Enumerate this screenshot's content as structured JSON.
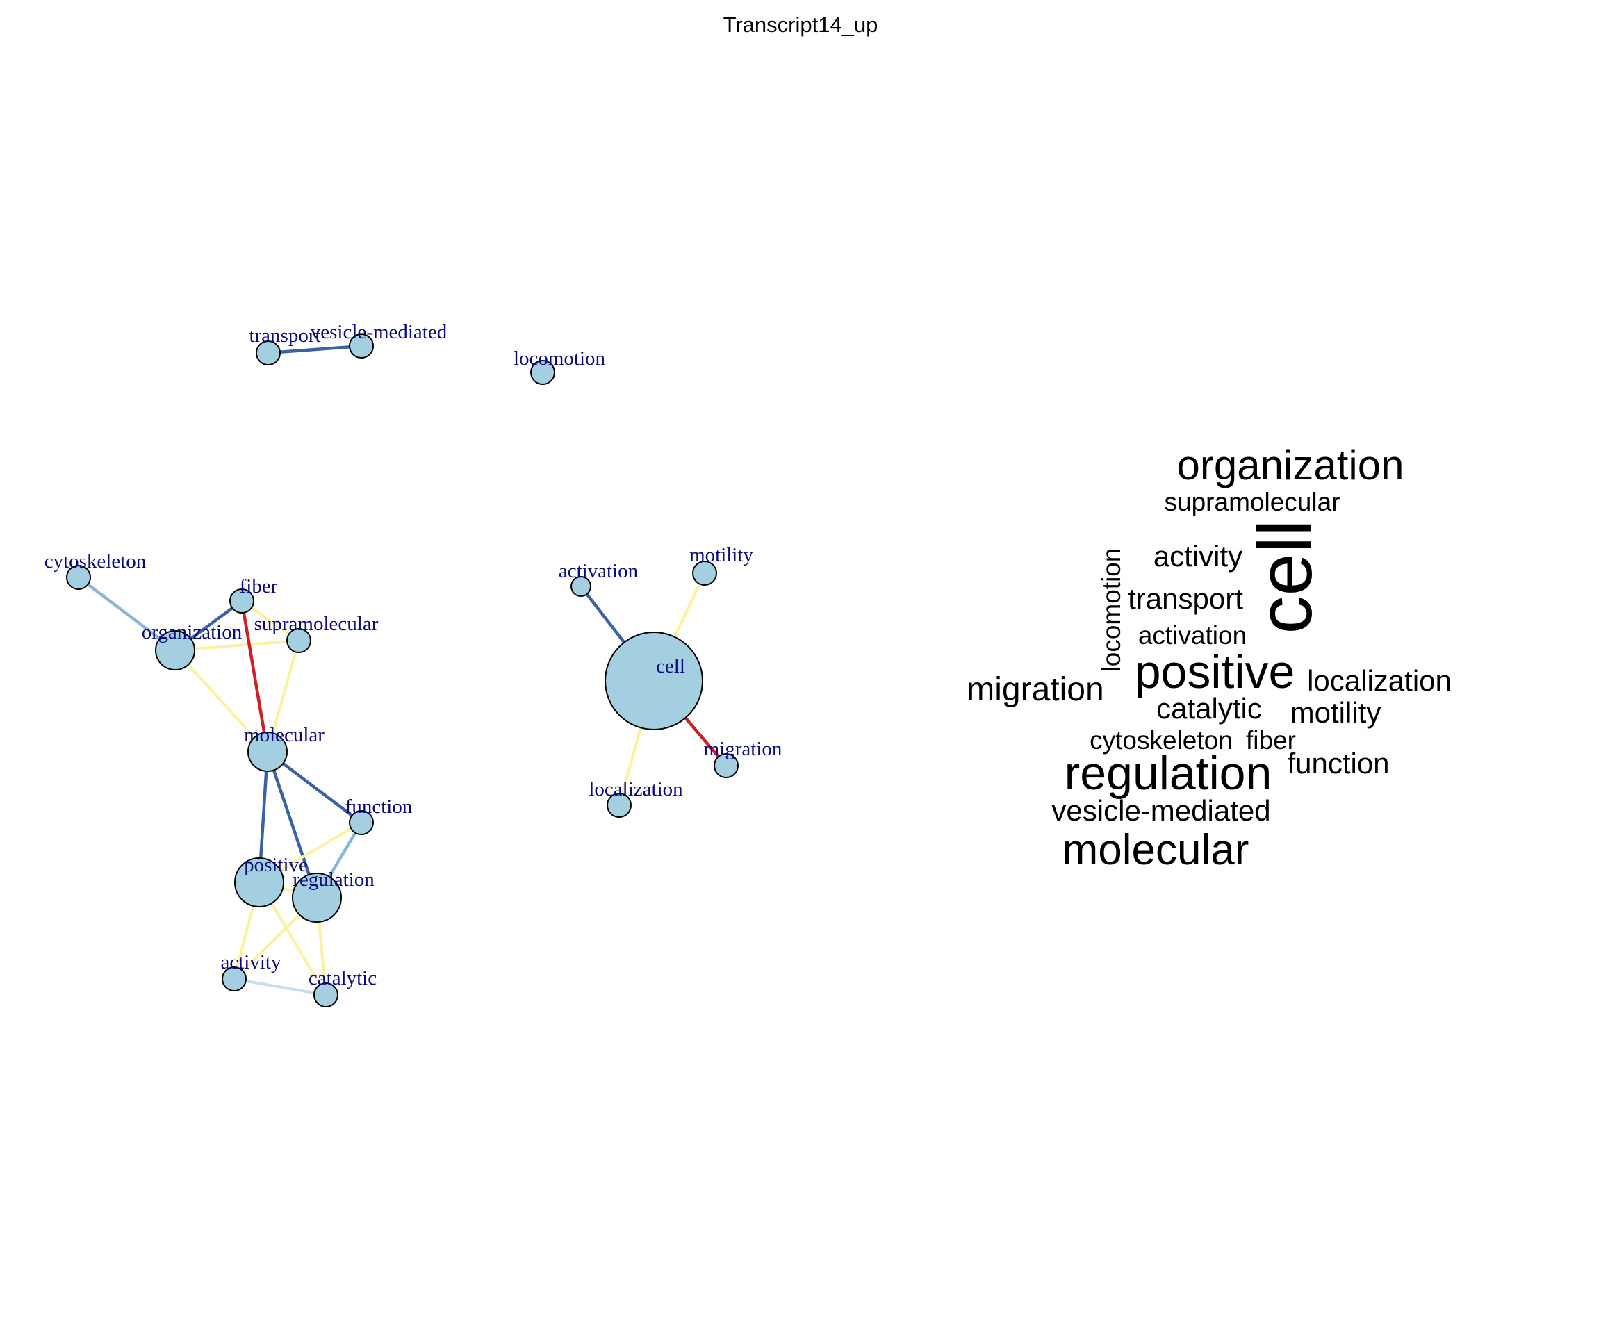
{
  "title": "Transcript14_up",
  "colors": {
    "node_fill": "#a3cfe0",
    "node_stroke": "#000000",
    "label": "#0a0a7a",
    "edge_strong": "#3b62a5",
    "edge_medium": "#8ab7d6",
    "edge_light": "#c4e0ea",
    "edge_weak": "#fbf2a0",
    "edge_red": "#cc1f26",
    "cloud_text": "#000000"
  },
  "network": {
    "nodes": [
      {
        "id": "transport",
        "label": "transport",
        "size": "small"
      },
      {
        "id": "vesicle-mediated",
        "label": "vesicle-mediated",
        "size": "small"
      },
      {
        "id": "locomotion",
        "label": "locomotion",
        "size": "small"
      },
      {
        "id": "cytoskeleton",
        "label": "cytoskeleton",
        "size": "small"
      },
      {
        "id": "fiber",
        "label": "fiber",
        "size": "small"
      },
      {
        "id": "organization",
        "label": "organization",
        "size": "medium"
      },
      {
        "id": "supramolecular",
        "label": "supramolecular",
        "size": "small"
      },
      {
        "id": "molecular",
        "label": "molecular",
        "size": "medium"
      },
      {
        "id": "function",
        "label": "function",
        "size": "small"
      },
      {
        "id": "positive",
        "label": "positive",
        "size": "large"
      },
      {
        "id": "regulation",
        "label": "regulation",
        "size": "large"
      },
      {
        "id": "activity",
        "label": "activity",
        "size": "small"
      },
      {
        "id": "catalytic",
        "label": "catalytic",
        "size": "small"
      },
      {
        "id": "activation",
        "label": "activation",
        "size": "xsmall"
      },
      {
        "id": "motility",
        "label": "motility",
        "size": "small"
      },
      {
        "id": "cell",
        "label": "cell",
        "size": "huge"
      },
      {
        "id": "migration",
        "label": "migration",
        "size": "small"
      },
      {
        "id": "localization",
        "label": "localization",
        "size": "small"
      }
    ],
    "edges": [
      {
        "source": "transport",
        "target": "vesicle-mediated",
        "strength": "strong"
      },
      {
        "source": "cytoskeleton",
        "target": "organization",
        "strength": "medium"
      },
      {
        "source": "organization",
        "target": "fiber",
        "strength": "strong"
      },
      {
        "source": "organization",
        "target": "supramolecular",
        "strength": "weak"
      },
      {
        "source": "fiber",
        "target": "supramolecular",
        "strength": "weak"
      },
      {
        "source": "fiber",
        "target": "molecular",
        "strength": "red"
      },
      {
        "source": "organization",
        "target": "molecular",
        "strength": "weak"
      },
      {
        "source": "supramolecular",
        "target": "molecular",
        "strength": "weak"
      },
      {
        "source": "molecular",
        "target": "positive",
        "strength": "strong"
      },
      {
        "source": "molecular",
        "target": "regulation",
        "strength": "strong"
      },
      {
        "source": "molecular",
        "target": "function",
        "strength": "strong"
      },
      {
        "source": "function",
        "target": "regulation",
        "strength": "medium"
      },
      {
        "source": "function",
        "target": "positive",
        "strength": "weak"
      },
      {
        "source": "positive",
        "target": "regulation",
        "strength": "weak"
      },
      {
        "source": "positive",
        "target": "activity",
        "strength": "weak"
      },
      {
        "source": "positive",
        "target": "catalytic",
        "strength": "weak"
      },
      {
        "source": "regulation",
        "target": "activity",
        "strength": "weak"
      },
      {
        "source": "regulation",
        "target": "catalytic",
        "strength": "weak"
      },
      {
        "source": "activity",
        "target": "catalytic",
        "strength": "light"
      },
      {
        "source": "cell",
        "target": "activation",
        "strength": "strong"
      },
      {
        "source": "cell",
        "target": "motility",
        "strength": "weak"
      },
      {
        "source": "cell",
        "target": "migration",
        "strength": "red"
      },
      {
        "source": "cell",
        "target": "localization",
        "strength": "weak"
      }
    ]
  },
  "word_cloud": [
    {
      "word": "organization",
      "weight": 3,
      "orientation": "horizontal"
    },
    {
      "word": "supramolecular",
      "weight": 1,
      "orientation": "horizontal"
    },
    {
      "word": "cell",
      "weight": 6,
      "orientation": "vertical"
    },
    {
      "word": "locomotion",
      "weight": 1,
      "orientation": "vertical"
    },
    {
      "word": "activity",
      "weight": 1,
      "orientation": "horizontal"
    },
    {
      "word": "transport",
      "weight": 1,
      "orientation": "horizontal"
    },
    {
      "word": "activation",
      "weight": 1,
      "orientation": "horizontal"
    },
    {
      "word": "positive",
      "weight": 4,
      "orientation": "horizontal"
    },
    {
      "word": "localization",
      "weight": 1,
      "orientation": "horizontal"
    },
    {
      "word": "migration",
      "weight": 2,
      "orientation": "horizontal"
    },
    {
      "word": "catalytic",
      "weight": 1,
      "orientation": "horizontal"
    },
    {
      "word": "motility",
      "weight": 1,
      "orientation": "horizontal"
    },
    {
      "word": "cytoskeleton",
      "weight": 1,
      "orientation": "horizontal"
    },
    {
      "word": "fiber",
      "weight": 1,
      "orientation": "horizontal"
    },
    {
      "word": "regulation",
      "weight": 4,
      "orientation": "horizontal"
    },
    {
      "word": "function",
      "weight": 1,
      "orientation": "horizontal"
    },
    {
      "word": "vesicle-mediated",
      "weight": 1,
      "orientation": "horizontal"
    },
    {
      "word": "molecular",
      "weight": 3,
      "orientation": "horizontal"
    }
  ]
}
